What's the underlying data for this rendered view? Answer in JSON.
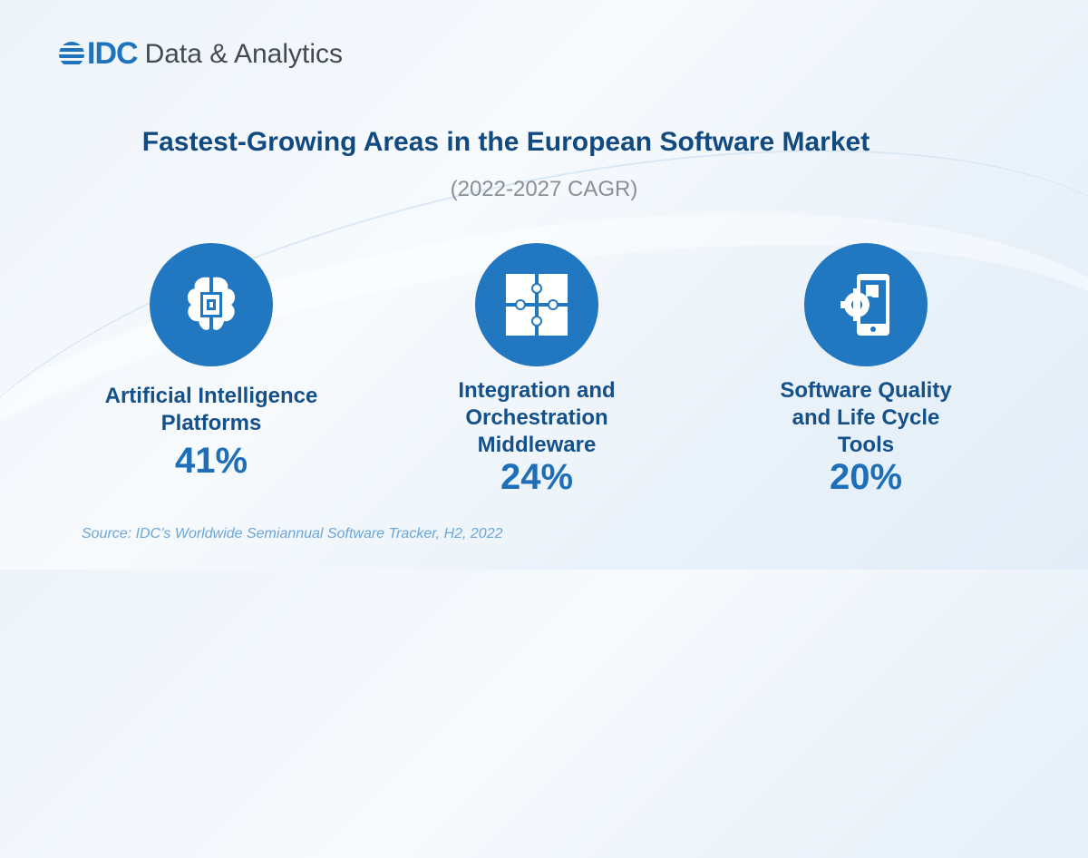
{
  "brand": {
    "logo": "IDC",
    "name": "Data & Analytics"
  },
  "title": "Fastest-Growing Areas in the European Software Market",
  "subtitle": "(2022-2027 CAGR)",
  "items": [
    {
      "icon": "ai-brain-chip-icon",
      "label_lines": [
        "Artificial Intelligence",
        "Platforms"
      ],
      "value": "41%"
    },
    {
      "icon": "puzzle-icon",
      "label_lines": [
        "Integration and",
        "Orchestration",
        "Middleware"
      ],
      "value": "24%"
    },
    {
      "icon": "mobile-gear-icon",
      "label_lines": [
        "Software Quality",
        "and Life Cycle",
        "Tools"
      ],
      "value": "20%"
    }
  ],
  "source": "Source: IDC’s Worldwide Semiannual Software Tracker, H2, 2022",
  "colors": {
    "accent": "#2178c0",
    "title": "#114a80"
  }
}
